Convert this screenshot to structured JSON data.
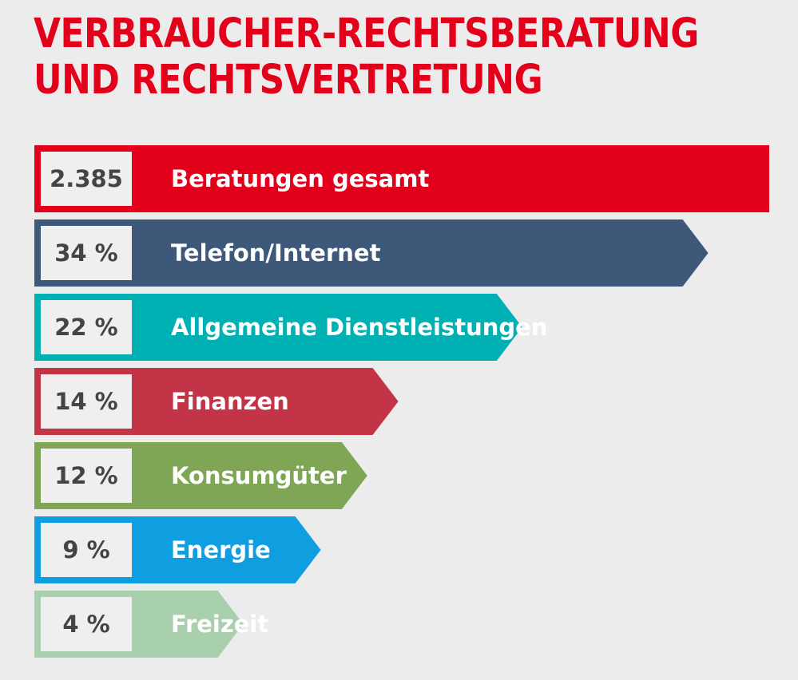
{
  "chart_data": {
    "type": "bar",
    "title_lines": [
      "VERBRAUCHER-RECHTSBERATUNG",
      "UND RECHTSVERTRETUNG"
    ],
    "unit": "%",
    "total": {
      "label": "Beratungen gesamt",
      "value_label": "2.385",
      "value": 2385,
      "color": "#e2001a"
    },
    "categories": [
      "Telefon/Internet",
      "Allgemeine Dienstleistungen",
      "Finanzen",
      "Konsumgüter",
      "Energie",
      "Freizeit"
    ],
    "values": [
      34,
      22,
      14,
      12,
      9,
      4
    ],
    "value_labels": [
      "34 %",
      "22 %",
      "14 %",
      "12 %",
      "9 %",
      "4 %"
    ],
    "colors": [
      "#3d5879",
      "#00b1b4",
      "#c33446",
      "#7fa654",
      "#0f9fe0",
      "#a9d0ad"
    ]
  }
}
